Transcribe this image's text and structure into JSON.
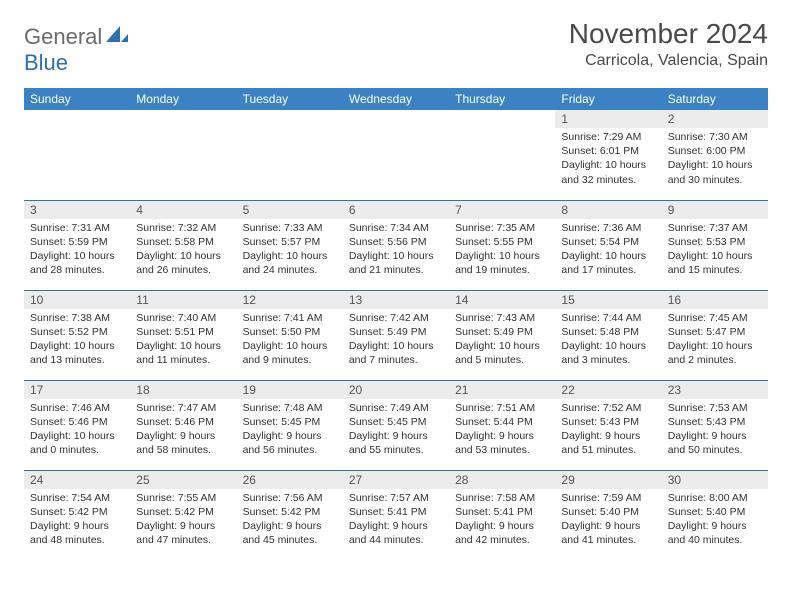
{
  "brand": {
    "part1": "General",
    "part2": "Blue"
  },
  "title": "November 2024",
  "location": "Carricola, Valencia, Spain",
  "colors": {
    "header_bg": "#3a82c4",
    "header_text": "#ffffff",
    "daynum_bg": "#ececec",
    "row_border": "#3a6fa5",
    "brand_gray": "#6b6b6b",
    "brand_blue": "#2c6fb5"
  },
  "weekdays": [
    "Sunday",
    "Monday",
    "Tuesday",
    "Wednesday",
    "Thursday",
    "Friday",
    "Saturday"
  ],
  "weeks": [
    [
      {
        "empty": true
      },
      {
        "empty": true
      },
      {
        "empty": true
      },
      {
        "empty": true
      },
      {
        "empty": true
      },
      {
        "n": "1",
        "sunrise": "7:29 AM",
        "sunset": "6:01 PM",
        "daylight": "10 hours and 32 minutes."
      },
      {
        "n": "2",
        "sunrise": "7:30 AM",
        "sunset": "6:00 PM",
        "daylight": "10 hours and 30 minutes."
      }
    ],
    [
      {
        "n": "3",
        "sunrise": "7:31 AM",
        "sunset": "5:59 PM",
        "daylight": "10 hours and 28 minutes."
      },
      {
        "n": "4",
        "sunrise": "7:32 AM",
        "sunset": "5:58 PM",
        "daylight": "10 hours and 26 minutes."
      },
      {
        "n": "5",
        "sunrise": "7:33 AM",
        "sunset": "5:57 PM",
        "daylight": "10 hours and 24 minutes."
      },
      {
        "n": "6",
        "sunrise": "7:34 AM",
        "sunset": "5:56 PM",
        "daylight": "10 hours and 21 minutes."
      },
      {
        "n": "7",
        "sunrise": "7:35 AM",
        "sunset": "5:55 PM",
        "daylight": "10 hours and 19 minutes."
      },
      {
        "n": "8",
        "sunrise": "7:36 AM",
        "sunset": "5:54 PM",
        "daylight": "10 hours and 17 minutes."
      },
      {
        "n": "9",
        "sunrise": "7:37 AM",
        "sunset": "5:53 PM",
        "daylight": "10 hours and 15 minutes."
      }
    ],
    [
      {
        "n": "10",
        "sunrise": "7:38 AM",
        "sunset": "5:52 PM",
        "daylight": "10 hours and 13 minutes."
      },
      {
        "n": "11",
        "sunrise": "7:40 AM",
        "sunset": "5:51 PM",
        "daylight": "10 hours and 11 minutes."
      },
      {
        "n": "12",
        "sunrise": "7:41 AM",
        "sunset": "5:50 PM",
        "daylight": "10 hours and 9 minutes."
      },
      {
        "n": "13",
        "sunrise": "7:42 AM",
        "sunset": "5:49 PM",
        "daylight": "10 hours and 7 minutes."
      },
      {
        "n": "14",
        "sunrise": "7:43 AM",
        "sunset": "5:49 PM",
        "daylight": "10 hours and 5 minutes."
      },
      {
        "n": "15",
        "sunrise": "7:44 AM",
        "sunset": "5:48 PM",
        "daylight": "10 hours and 3 minutes."
      },
      {
        "n": "16",
        "sunrise": "7:45 AM",
        "sunset": "5:47 PM",
        "daylight": "10 hours and 2 minutes."
      }
    ],
    [
      {
        "n": "17",
        "sunrise": "7:46 AM",
        "sunset": "5:46 PM",
        "daylight": "10 hours and 0 minutes."
      },
      {
        "n": "18",
        "sunrise": "7:47 AM",
        "sunset": "5:46 PM",
        "daylight": "9 hours and 58 minutes."
      },
      {
        "n": "19",
        "sunrise": "7:48 AM",
        "sunset": "5:45 PM",
        "daylight": "9 hours and 56 minutes."
      },
      {
        "n": "20",
        "sunrise": "7:49 AM",
        "sunset": "5:45 PM",
        "daylight": "9 hours and 55 minutes."
      },
      {
        "n": "21",
        "sunrise": "7:51 AM",
        "sunset": "5:44 PM",
        "daylight": "9 hours and 53 minutes."
      },
      {
        "n": "22",
        "sunrise": "7:52 AM",
        "sunset": "5:43 PM",
        "daylight": "9 hours and 51 minutes."
      },
      {
        "n": "23",
        "sunrise": "7:53 AM",
        "sunset": "5:43 PM",
        "daylight": "9 hours and 50 minutes."
      }
    ],
    [
      {
        "n": "24",
        "sunrise": "7:54 AM",
        "sunset": "5:42 PM",
        "daylight": "9 hours and 48 minutes."
      },
      {
        "n": "25",
        "sunrise": "7:55 AM",
        "sunset": "5:42 PM",
        "daylight": "9 hours and 47 minutes."
      },
      {
        "n": "26",
        "sunrise": "7:56 AM",
        "sunset": "5:42 PM",
        "daylight": "9 hours and 45 minutes."
      },
      {
        "n": "27",
        "sunrise": "7:57 AM",
        "sunset": "5:41 PM",
        "daylight": "9 hours and 44 minutes."
      },
      {
        "n": "28",
        "sunrise": "7:58 AM",
        "sunset": "5:41 PM",
        "daylight": "9 hours and 42 minutes."
      },
      {
        "n": "29",
        "sunrise": "7:59 AM",
        "sunset": "5:40 PM",
        "daylight": "9 hours and 41 minutes."
      },
      {
        "n": "30",
        "sunrise": "8:00 AM",
        "sunset": "5:40 PM",
        "daylight": "9 hours and 40 minutes."
      }
    ]
  ],
  "labels": {
    "sunrise": "Sunrise: ",
    "sunset": "Sunset: ",
    "daylight": "Daylight: "
  }
}
